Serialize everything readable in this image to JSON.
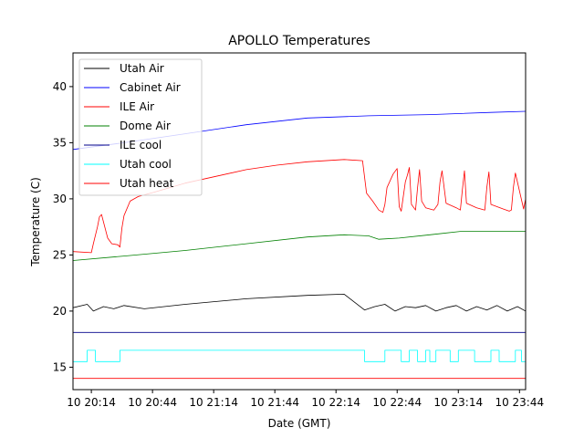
{
  "chart_data": {
    "type": "line",
    "title": "APOLLO Temperatures",
    "xlabel": "Date (GMT)",
    "ylabel": "Temperature (C)",
    "xunits": "minutes since 10 20:00 GMT",
    "xlim": [
      5,
      227
    ],
    "ylim": [
      13,
      43
    ],
    "grid": false,
    "legend_position": "top-left",
    "x_ticks": [
      {
        "value": 14,
        "label": "10 20:14"
      },
      {
        "value": 44,
        "label": "10 20:44"
      },
      {
        "value": 74,
        "label": "10 21:14"
      },
      {
        "value": 104,
        "label": "10 21:44"
      },
      {
        "value": 134,
        "label": "10 22:14"
      },
      {
        "value": 164,
        "label": "10 22:44"
      },
      {
        "value": 194,
        "label": "10 23:14"
      },
      {
        "value": 224,
        "label": "10 23:44"
      }
    ],
    "y_ticks": [
      {
        "value": 15,
        "label": "15"
      },
      {
        "value": 20,
        "label": "20"
      },
      {
        "value": 25,
        "label": "25"
      },
      {
        "value": 30,
        "label": "30"
      },
      {
        "value": 35,
        "label": "35"
      },
      {
        "value": 40,
        "label": "40"
      }
    ],
    "series": [
      {
        "name": "Utah Air",
        "color": "#000000",
        "x": [
          5,
          12,
          15,
          20,
          25,
          30,
          40,
          60,
          90,
          120,
          138,
          148,
          153,
          158,
          163,
          168,
          173,
          178,
          183,
          188,
          193,
          198,
          203,
          208,
          213,
          218,
          223,
          227
        ],
        "y": [
          20.3,
          20.6,
          20.0,
          20.4,
          20.2,
          20.5,
          20.2,
          20.6,
          21.1,
          21.4,
          21.5,
          20.1,
          20.4,
          20.6,
          20.0,
          20.4,
          20.3,
          20.5,
          20.0,
          20.3,
          20.5,
          20.0,
          20.4,
          20.1,
          20.5,
          20.0,
          20.4,
          20.0
        ]
      },
      {
        "name": "Cabinet Air",
        "color": "#0000ff",
        "x": [
          5,
          30,
          60,
          90,
          120,
          150,
          180,
          210,
          227
        ],
        "y": [
          34.4,
          35.0,
          35.8,
          36.6,
          37.2,
          37.4,
          37.5,
          37.7,
          37.8
        ]
      },
      {
        "name": "ILE Air",
        "color": "#ff0000",
        "x": [
          5,
          14,
          15,
          17,
          18,
          19,
          22,
          24,
          27,
          28,
          29,
          30,
          33,
          37,
          45,
          60,
          75,
          90,
          105,
          120,
          138,
          147,
          149,
          152,
          155,
          157,
          158,
          159,
          162,
          164,
          165,
          166,
          168,
          169,
          170,
          171,
          173,
          174,
          175,
          176,
          178,
          182,
          184,
          185,
          186,
          188,
          193,
          195,
          196,
          197,
          198,
          203,
          207,
          208,
          209,
          210,
          216,
          219,
          220,
          221,
          222,
          226,
          227
        ],
        "y": [
          25.3,
          25.2,
          26.0,
          27.5,
          28.4,
          28.6,
          26.5,
          26.0,
          25.9,
          25.7,
          27.4,
          28.5,
          29.8,
          30.2,
          30.6,
          31.4,
          32.0,
          32.6,
          33.0,
          33.3,
          33.5,
          33.4,
          30.5,
          29.8,
          29.0,
          28.8,
          29.5,
          31.0,
          32.2,
          32.7,
          29.3,
          28.9,
          31.5,
          32.1,
          32.8,
          29.5,
          29.0,
          31.0,
          32.6,
          29.8,
          29.2,
          29.0,
          29.5,
          31.5,
          32.5,
          29.6,
          29.2,
          29.0,
          30.8,
          32.5,
          29.6,
          29.2,
          29.0,
          31.0,
          32.4,
          29.5,
          29.1,
          28.9,
          29.0,
          31.0,
          32.3,
          29.1,
          30.0
        ]
      },
      {
        "name": "Dome Air",
        "color": "#008000",
        "x": [
          5,
          30,
          60,
          90,
          120,
          138,
          150,
          155,
          165,
          180,
          195,
          210,
          227
        ],
        "y": [
          24.5,
          24.9,
          25.4,
          26.0,
          26.6,
          26.8,
          26.7,
          26.4,
          26.5,
          26.8,
          27.1,
          27.1,
          27.1
        ]
      },
      {
        "name": "ILE cool",
        "color": "#00008b",
        "x": [
          5,
          227
        ],
        "y": [
          18.1,
          18.1
        ]
      },
      {
        "name": "Utah cool",
        "color": "#00ffff",
        "x": [
          5,
          12,
          12,
          16,
          16,
          28,
          28,
          148,
          148,
          158,
          158,
          166,
          166,
          170,
          170,
          174,
          174,
          178,
          178,
          180,
          180,
          183,
          183,
          190,
          190,
          194,
          194,
          202,
          202,
          210,
          210,
          214,
          214,
          222,
          222,
          225,
          225,
          227
        ],
        "y": [
          15.5,
          15.5,
          16.5,
          16.5,
          15.5,
          15.5,
          16.5,
          16.5,
          15.5,
          15.5,
          16.5,
          16.5,
          15.5,
          15.5,
          16.5,
          16.5,
          15.5,
          15.5,
          16.5,
          16.5,
          15.5,
          15.5,
          16.5,
          16.5,
          15.5,
          15.5,
          16.5,
          16.5,
          15.5,
          15.5,
          16.5,
          16.5,
          15.5,
          15.5,
          16.5,
          16.5,
          15.5,
          15.5
        ]
      },
      {
        "name": "Utah heat",
        "color": "#ff0000",
        "x": [
          5,
          227
        ],
        "y": [
          14.0,
          14.0
        ]
      }
    ]
  }
}
